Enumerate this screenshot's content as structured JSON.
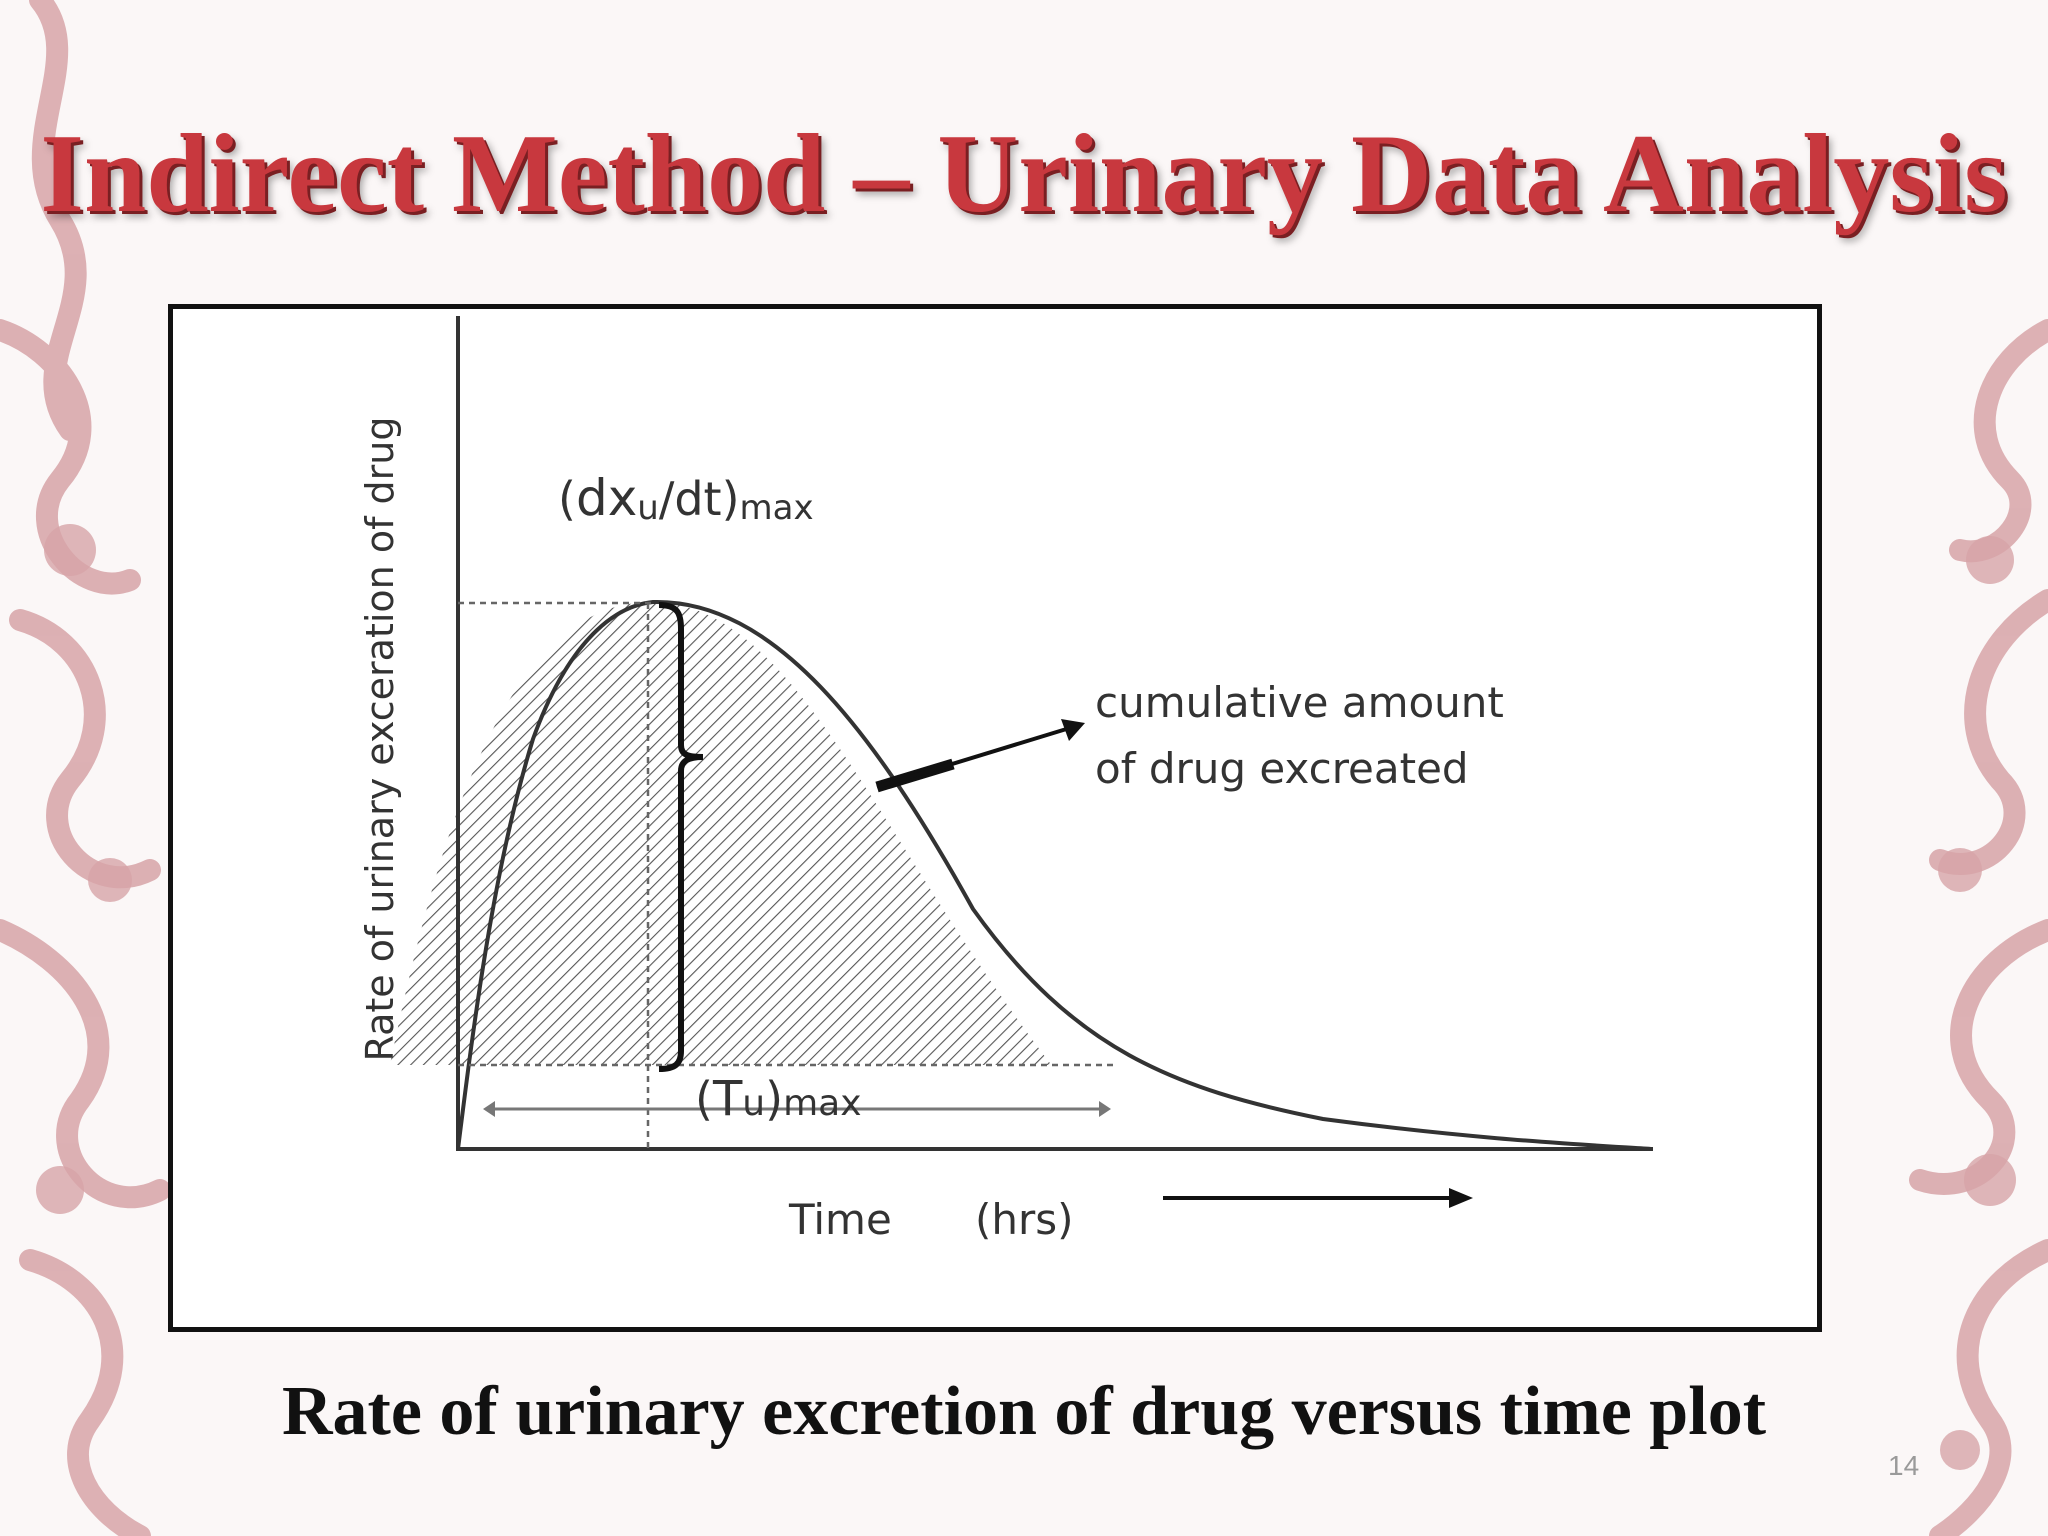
{
  "slide": {
    "title": "Indirect Method – Urinary Data Analysis",
    "caption": "Rate of urinary excretion of drug versus time plot",
    "slide_number": "14"
  },
  "diagram": {
    "y_axis_label": "Rate of urinary exceration of drug",
    "x_axis_label": "Time",
    "x_axis_unit": "(hrs)",
    "peak_label": {
      "paren_open": "(",
      "main": "dx",
      "sub": "u",
      "rest": "/dt)",
      "tail": "max"
    },
    "tmax_label": {
      "paren_open": "(",
      "main": "T",
      "sub": "u",
      "rest": ")",
      "tail": "max"
    },
    "annotation_line1": "cumulative amount",
    "annotation_line2": "of drug excreated"
  },
  "colors": {
    "title": "#c8383e",
    "ornament": "#d7a4a8",
    "curve": "#333333"
  }
}
